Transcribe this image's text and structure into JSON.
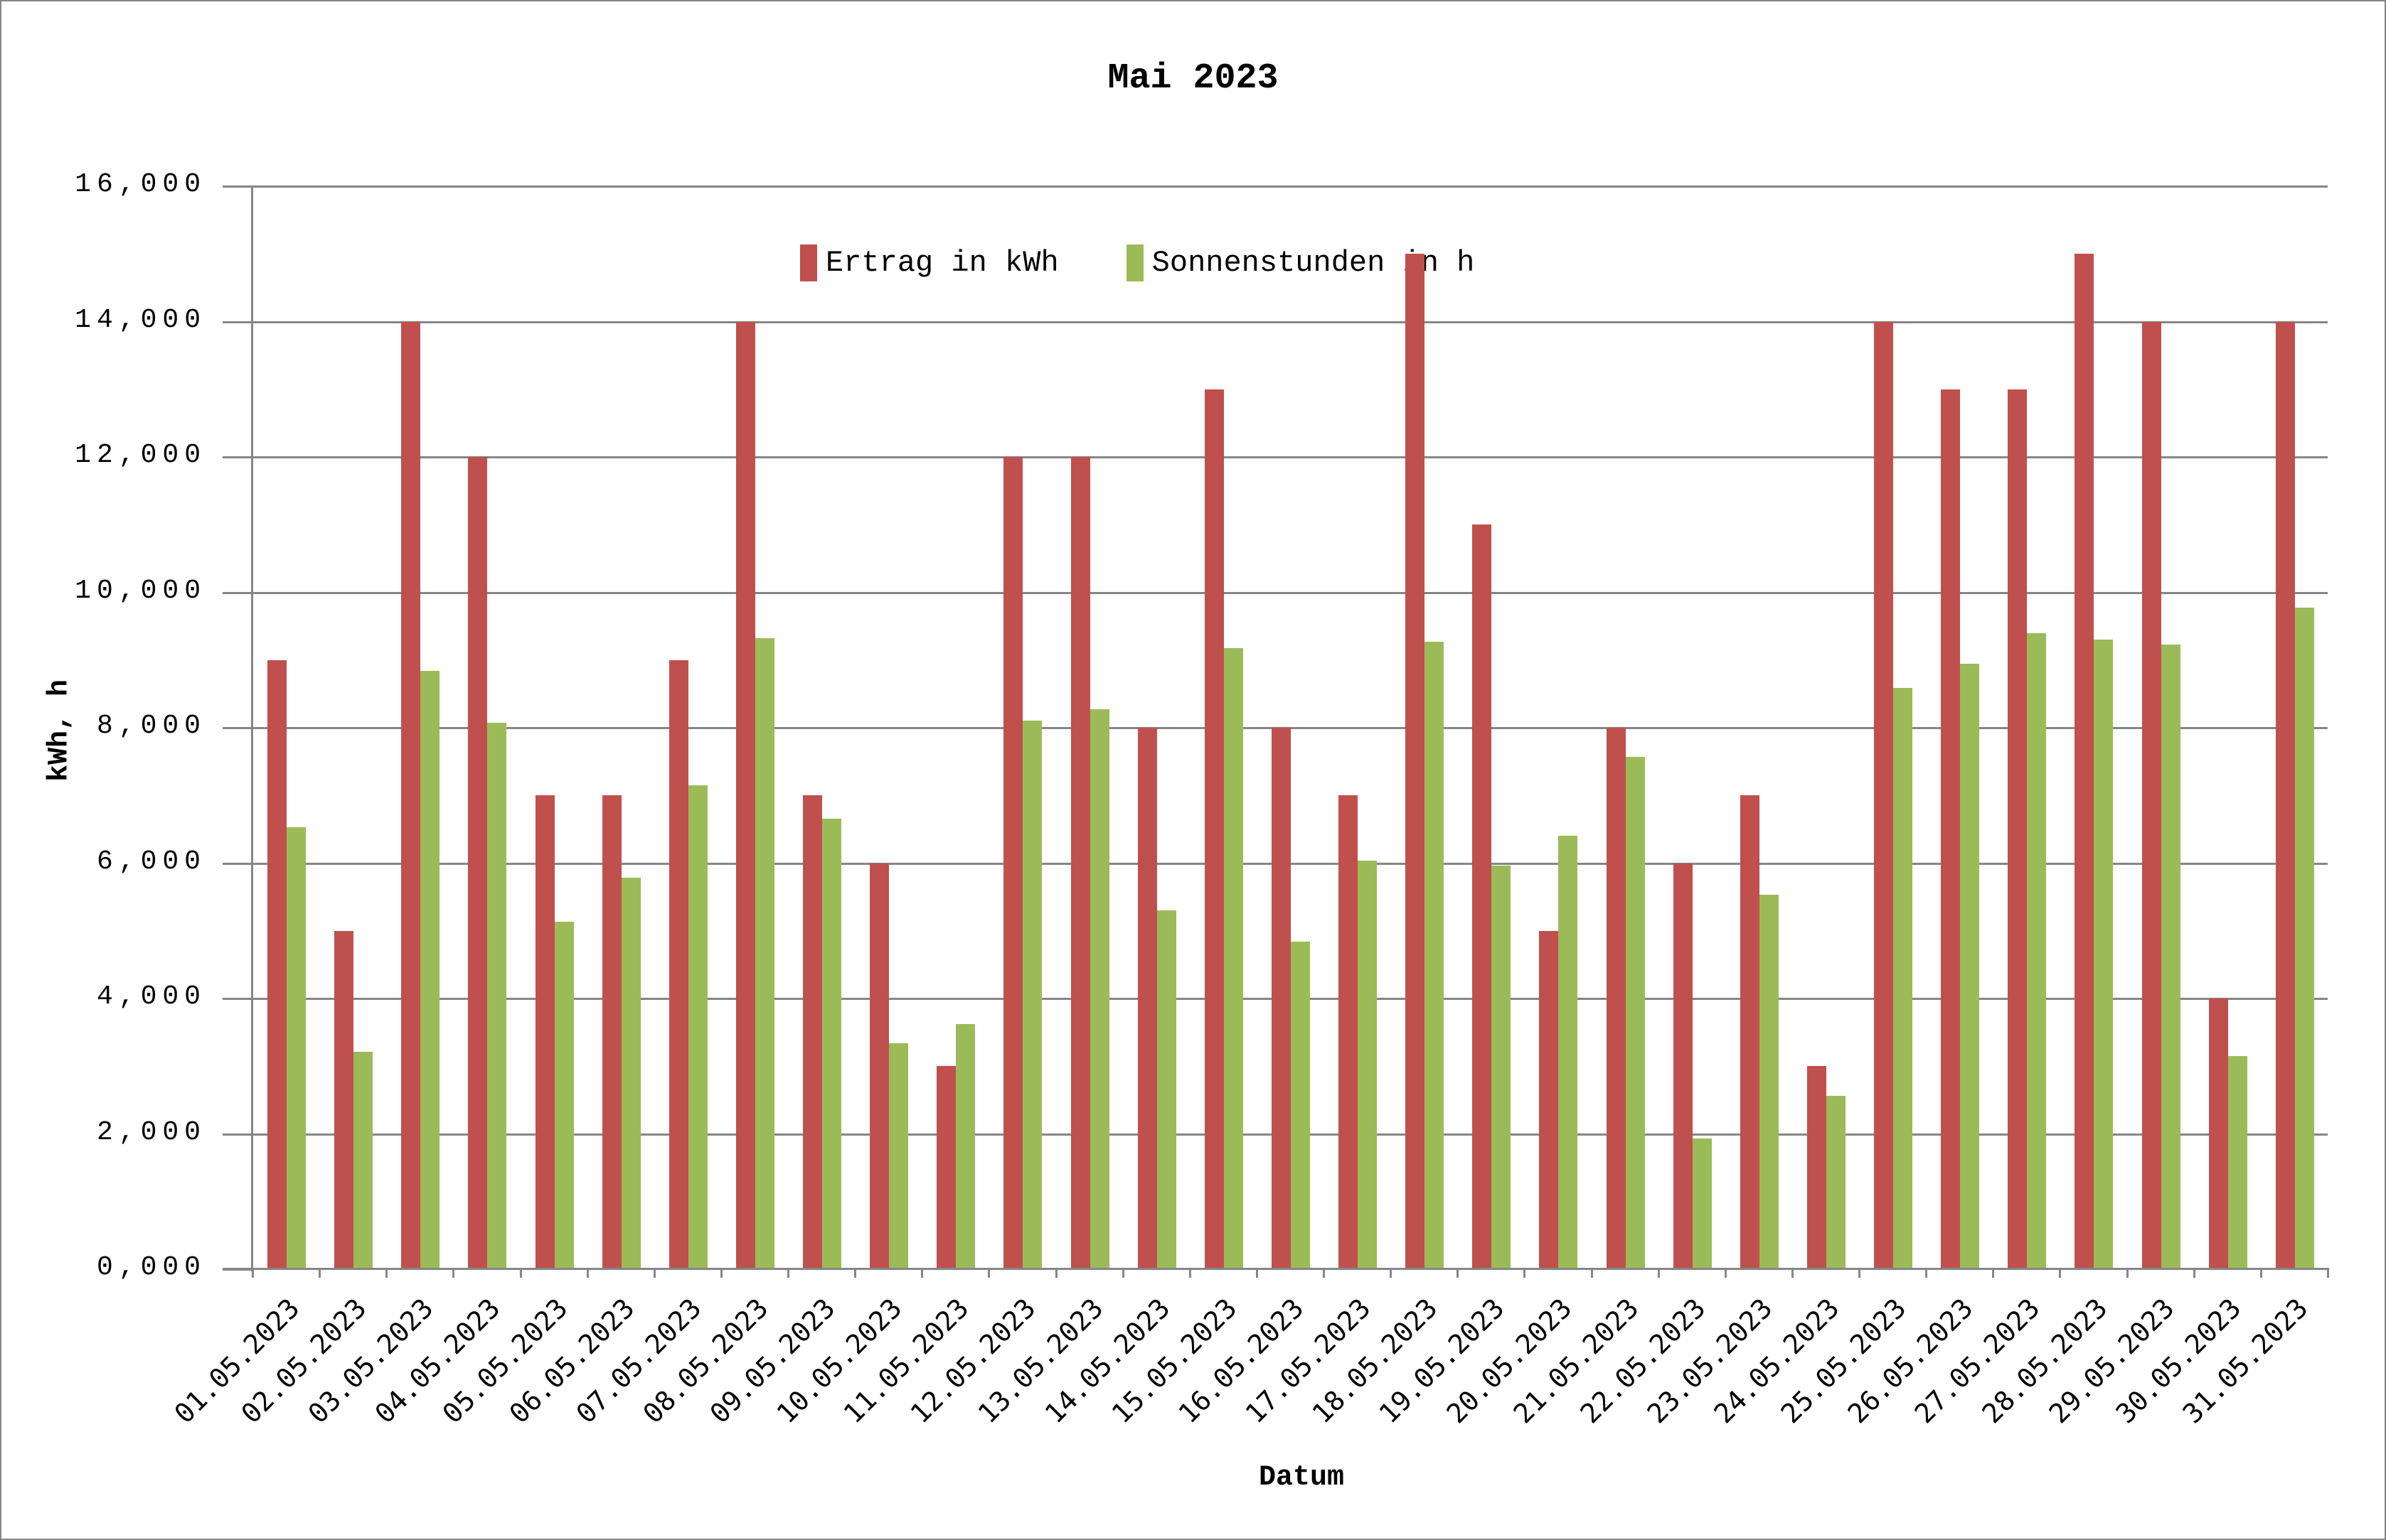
{
  "chart_data": {
    "type": "bar",
    "title": "Mai 2023",
    "xlabel": "Datum",
    "ylabel": "kWh, h",
    "ylim": [
      0,
      16
    ],
    "y_ticks": [
      "0,000",
      "2,000",
      "4,000",
      "6,000",
      "8,000",
      "10,000",
      "12,000",
      "14,000",
      "16,000"
    ],
    "grid": true,
    "legend_position": "top",
    "categories": [
      "01.05.2023",
      "02.05.2023",
      "03.05.2023",
      "04.05.2023",
      "05.05.2023",
      "06.05.2023",
      "07.05.2023",
      "08.05.2023",
      "09.05.2023",
      "10.05.2023",
      "11.05.2023",
      "12.05.2023",
      "13.05.2023",
      "14.05.2023",
      "15.05.2023",
      "16.05.2023",
      "17.05.2023",
      "18.05.2023",
      "19.05.2023",
      "20.05.2023",
      "21.05.2023",
      "22.05.2023",
      "23.05.2023",
      "24.05.2023",
      "25.05.2023",
      "26.05.2023",
      "27.05.2023",
      "28.05.2023",
      "29.05.2023",
      "30.05.2023",
      "31.05.2023"
    ],
    "series": [
      {
        "name": "Ertrag in kWh",
        "color": "#c0504d",
        "values": [
          9,
          5,
          14,
          12,
          7,
          7,
          9,
          14,
          7,
          6,
          3,
          12,
          12,
          8,
          13,
          8,
          7,
          15,
          11,
          5,
          8,
          6,
          7,
          3,
          14,
          13,
          13,
          15,
          14,
          4,
          14
        ]
      },
      {
        "name": "Sonnenstunden in h",
        "color": "#9bbb59",
        "values": [
          6.53,
          3.21,
          8.84,
          8.07,
          5.13,
          5.78,
          7.15,
          9.32,
          6.66,
          3.34,
          3.62,
          8.1,
          8.27,
          5.3,
          9.18,
          4.84,
          6.04,
          9.27,
          5.96,
          6.4,
          7.57,
          1.93,
          5.53,
          2.56,
          8.59,
          8.95,
          9.4,
          9.3,
          9.23,
          3.15,
          9.77
        ]
      }
    ]
  },
  "colors": {
    "axis": "#868686",
    "ertrag": "#c0504d",
    "sonne": "#9bbb59"
  }
}
